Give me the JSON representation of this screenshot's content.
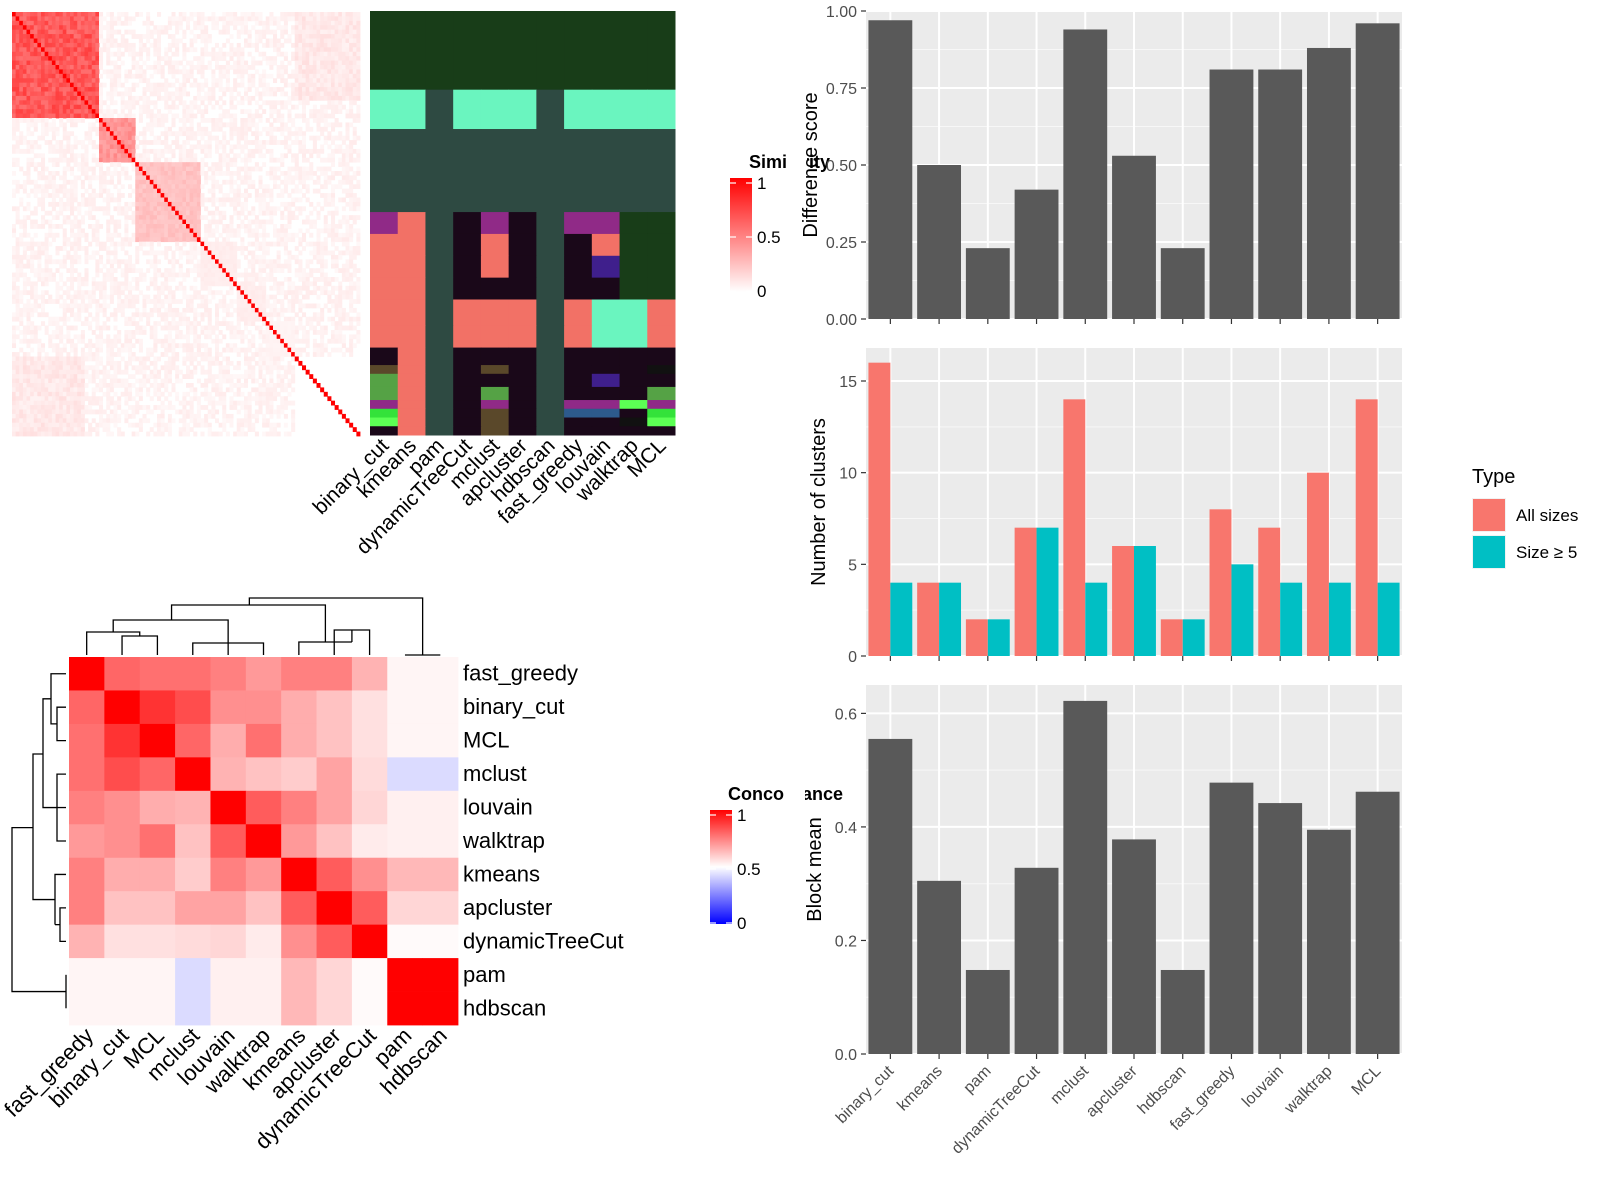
{
  "chart_data": [
    {
      "type": "heatmap",
      "panel": "similarity-matrix-with-class-membership",
      "legend": {
        "title": "Similarity",
        "ticks": [
          "1",
          "0.5",
          "0"
        ],
        "colors": [
          "#ff0000",
          "#ffffff"
        ]
      },
      "membership_columns": [
        "binary_cut",
        "kmeans",
        "pam",
        "dynamicTreeCut",
        "mclust",
        "apcluster",
        "hdbscan",
        "fast_greedy",
        "louvain",
        "walktrap",
        "MCL"
      ],
      "membership_palette": [
        "#183d18",
        "#2e4a42",
        "#6af5bf",
        "#f27166",
        "#1a0819",
        "#55a245",
        "#902a87",
        "#3f1f8c",
        "#2d5a8c",
        "#33e23a",
        "#5a482a",
        "#111111",
        "#5cff54"
      ],
      "membership_groups": [
        {
          "rows": 18,
          "cells": [
            0,
            0,
            0,
            0,
            0,
            0,
            0,
            0,
            0,
            0,
            0
          ]
        },
        {
          "rows": 9,
          "cells": [
            2,
            2,
            1,
            2,
            2,
            2,
            1,
            2,
            2,
            2,
            2
          ]
        },
        {
          "rows": 19,
          "cells": [
            1,
            1,
            1,
            1,
            1,
            1,
            1,
            1,
            1,
            1,
            1
          ]
        },
        {
          "rows": 5,
          "cells": [
            6,
            3,
            1,
            4,
            6,
            4,
            1,
            6,
            6,
            0,
            0
          ]
        },
        {
          "rows": 5,
          "cells": [
            3,
            3,
            1,
            4,
            3,
            4,
            1,
            4,
            3,
            0,
            0
          ]
        },
        {
          "rows": 5,
          "cells": [
            3,
            3,
            1,
            4,
            3,
            4,
            1,
            4,
            7,
            0,
            0
          ]
        },
        {
          "rows": 5,
          "cells": [
            3,
            3,
            1,
            4,
            4,
            4,
            1,
            4,
            4,
            0,
            0
          ]
        },
        {
          "rows": 6,
          "cells": [
            3,
            3,
            1,
            3,
            3,
            3,
            1,
            3,
            2,
            2,
            3
          ]
        },
        {
          "rows": 5,
          "cells": [
            3,
            3,
            1,
            3,
            3,
            3,
            1,
            3,
            2,
            2,
            3
          ]
        },
        {
          "rows": 4,
          "cells": [
            4,
            3,
            1,
            4,
            4,
            4,
            1,
            4,
            4,
            4,
            4
          ]
        },
        {
          "rows": 2,
          "cells": [
            10,
            3,
            1,
            4,
            10,
            4,
            1,
            4,
            4,
            4,
            11
          ]
        },
        {
          "rows": 3,
          "cells": [
            5,
            3,
            1,
            4,
            4,
            4,
            1,
            4,
            7,
            4,
            4
          ]
        },
        {
          "rows": 3,
          "cells": [
            5,
            3,
            1,
            4,
            5,
            4,
            1,
            4,
            4,
            4,
            5
          ]
        },
        {
          "rows": 2,
          "cells": [
            6,
            3,
            1,
            4,
            6,
            4,
            1,
            6,
            6,
            12,
            6
          ]
        },
        {
          "rows": 2,
          "cells": [
            9,
            3,
            1,
            4,
            10,
            4,
            1,
            8,
            8,
            4,
            9
          ]
        },
        {
          "rows": 2,
          "cells": [
            12,
            3,
            1,
            4,
            10,
            4,
            1,
            4,
            4,
            11,
            12
          ]
        },
        {
          "rows": 2,
          "cells": [
            4,
            3,
            1,
            4,
            10,
            4,
            1,
            4,
            4,
            4,
            4
          ]
        }
      ]
    },
    {
      "type": "heatmap",
      "panel": "concordance-matrix",
      "legend": {
        "title": "Concordance",
        "ticks": [
          "1",
          "0.5",
          "0"
        ],
        "colors": [
          "#ff0000",
          "#ffffff",
          "#0000ff"
        ]
      },
      "methods": [
        "fast_greedy",
        "binary_cut",
        "MCL",
        "mclust",
        "louvain",
        "walktrap",
        "kmeans",
        "apcluster",
        "dynamicTreeCut",
        "pam",
        "hdbscan"
      ],
      "values": [
        [
          1.0,
          0.8,
          0.78,
          0.78,
          0.75,
          0.7,
          0.75,
          0.75,
          0.65,
          0.52,
          0.52
        ],
        [
          0.8,
          1.0,
          0.9,
          0.85,
          0.72,
          0.72,
          0.66,
          0.62,
          0.56,
          0.52,
          0.52
        ],
        [
          0.78,
          0.9,
          1.0,
          0.8,
          0.66,
          0.78,
          0.66,
          0.62,
          0.56,
          0.52,
          0.52
        ],
        [
          0.78,
          0.85,
          0.8,
          1.0,
          0.65,
          0.62,
          0.6,
          0.68,
          0.57,
          0.43,
          0.43
        ],
        [
          0.75,
          0.72,
          0.66,
          0.65,
          1.0,
          0.82,
          0.75,
          0.68,
          0.58,
          0.53,
          0.53
        ],
        [
          0.7,
          0.72,
          0.78,
          0.62,
          0.82,
          1.0,
          0.7,
          0.62,
          0.54,
          0.53,
          0.53
        ],
        [
          0.75,
          0.66,
          0.66,
          0.6,
          0.75,
          0.7,
          1.0,
          0.82,
          0.72,
          0.64,
          0.64
        ],
        [
          0.75,
          0.62,
          0.62,
          0.68,
          0.68,
          0.62,
          0.82,
          1.0,
          0.82,
          0.58,
          0.58
        ],
        [
          0.65,
          0.56,
          0.56,
          0.57,
          0.58,
          0.54,
          0.72,
          0.82,
          1.0,
          0.51,
          0.51
        ],
        [
          0.52,
          0.52,
          0.52,
          0.43,
          0.53,
          0.53,
          0.64,
          0.58,
          0.51,
          1.0,
          1.0
        ],
        [
          0.52,
          0.52,
          0.52,
          0.43,
          0.53,
          0.53,
          0.64,
          0.58,
          0.51,
          1.0,
          1.0
        ]
      ]
    },
    {
      "type": "bar",
      "panel": "difference-score",
      "categories": [
        "binary_cut",
        "kmeans",
        "pam",
        "dynamicTreeCut",
        "mclust",
        "apcluster",
        "hdbscan",
        "fast_greedy",
        "louvain",
        "walktrap",
        "MCL"
      ],
      "values": [
        0.97,
        0.5,
        0.23,
        0.42,
        0.94,
        0.53,
        0.23,
        0.81,
        0.81,
        0.88,
        0.96
      ],
      "ylabel": "Difference score",
      "ylim": [
        0,
        1
      ],
      "yticks": [
        "0.00",
        "0.25",
        "0.50",
        "0.75",
        "1.00"
      ],
      "bar_color": "#595959",
      "panel_bg": "#ebebeb"
    },
    {
      "type": "bar",
      "panel": "number-of-clusters",
      "categories": [
        "binary_cut",
        "kmeans",
        "pam",
        "dynamicTreeCut",
        "mclust",
        "apcluster",
        "hdbscan",
        "fast_greedy",
        "louvain",
        "walktrap",
        "MCL"
      ],
      "series": [
        {
          "name": "All sizes",
          "color": "#f8766d",
          "values": [
            16,
            4,
            2,
            7,
            14,
            6,
            2,
            8,
            7,
            10,
            14
          ]
        },
        {
          "name": "Size ≥ 5",
          "color": "#00bfc4",
          "values": [
            4,
            4,
            2,
            7,
            4,
            6,
            2,
            5,
            4,
            4,
            4
          ]
        }
      ],
      "ylabel": "Number of clusters",
      "ylim": [
        0,
        16.8
      ],
      "yticks": [
        "0",
        "5",
        "10",
        "15"
      ],
      "legend": {
        "title": "Type",
        "placement": "right"
      },
      "panel_bg": "#ebebeb"
    },
    {
      "type": "bar",
      "panel": "block-mean",
      "categories": [
        "binary_cut",
        "kmeans",
        "pam",
        "dynamicTreeCut",
        "mclust",
        "apcluster",
        "hdbscan",
        "fast_greedy",
        "louvain",
        "walktrap",
        "MCL"
      ],
      "values": [
        0.555,
        0.305,
        0.148,
        0.328,
        0.622,
        0.378,
        0.148,
        0.478,
        0.442,
        0.395,
        0.462
      ],
      "ylabel": "Block mean",
      "ylim": [
        0,
        0.65
      ],
      "yticks": [
        "0.0",
        "0.2",
        "0.4",
        "0.6"
      ],
      "bar_color": "#595959",
      "panel_bg": "#ebebeb"
    }
  ]
}
